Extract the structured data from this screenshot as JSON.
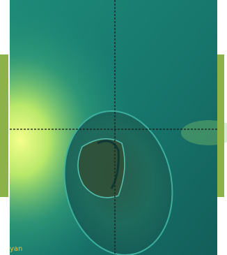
{
  "label": "yan"
}
